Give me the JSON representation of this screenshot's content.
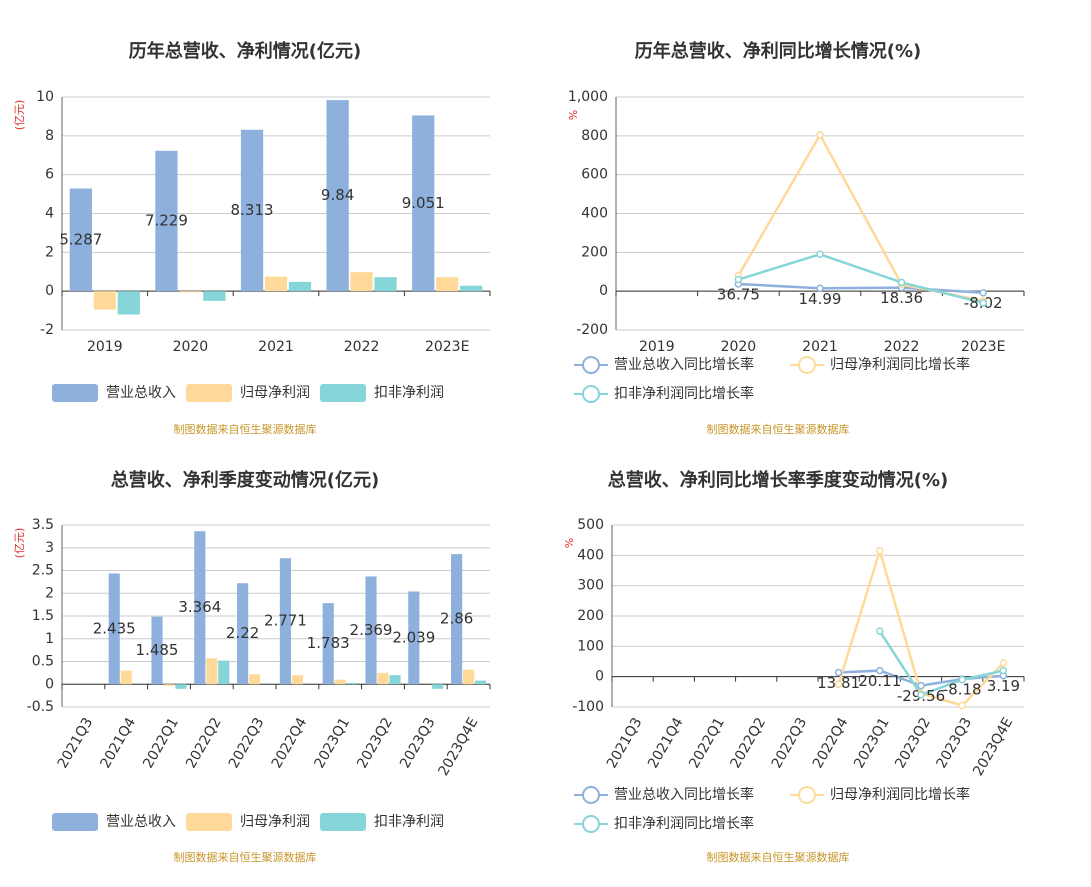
{
  "chart_data": [
    {
      "type": "bar",
      "title": "历年总营收、净利情况(亿元)",
      "y_label": "(亿元)",
      "source": "制图数据来自恒生聚源数据库",
      "categories": [
        "2019",
        "2020",
        "2021",
        "2022",
        "2023E"
      ],
      "series": [
        {
          "name": "营业总收入",
          "color": "#8eb0dd",
          "values": [
            5.287,
            7.229,
            8.313,
            9.84,
            9.051
          ]
        },
        {
          "name": "归母净利润",
          "color": "#ffd99a",
          "values": [
            -0.95,
            -0.05,
            0.75,
            0.98,
            0.72
          ]
        },
        {
          "name": "扣非净利润",
          "color": "#86d5d8",
          "values": [
            -1.2,
            -0.5,
            0.48,
            0.72,
            0.28
          ]
        }
      ],
      "ylim": [
        -2,
        10
      ],
      "yticks": [
        -2,
        0,
        2,
        4,
        6,
        8,
        10
      ],
      "grid": true
    },
    {
      "type": "line",
      "title": "历年总营收、净利同比增长情况(%)",
      "y_label": "%",
      "source": "制图数据来自恒生聚源数据库",
      "categories": [
        "2019",
        "2020",
        "2021",
        "2022",
        "2023E"
      ],
      "series": [
        {
          "name": "营业总收入同比增长率",
          "color": "#8eb0dd",
          "values": [
            null,
            36.75,
            14.99,
            18.36,
            -8.02
          ]
        },
        {
          "name": "归母净利润同比增长率",
          "color": "#ffd99a",
          "values": [
            null,
            80,
            805,
            35,
            -50
          ]
        },
        {
          "name": "扣非净利润同比增长率",
          "color": "#86d5d8",
          "values": [
            null,
            60,
            190,
            45,
            -60
          ]
        }
      ],
      "ylim": [
        -200,
        1000
      ],
      "yticks": [
        -200,
        0,
        200,
        400,
        600,
        800,
        {
          "value": 1000,
          "label": "1,000"
        }
      ],
      "grid": true
    },
    {
      "type": "bar",
      "title": "总营收、净利季度变动情况(亿元)",
      "y_label": "(亿元)",
      "source": "制图数据来自恒生聚源数据库",
      "categories": [
        "2021Q3",
        "2021Q4",
        "2022Q1",
        "2022Q2",
        "2022Q3",
        "2022Q4",
        "2023Q1",
        "2023Q2",
        "2023Q3",
        "2023Q4E"
      ],
      "series": [
        {
          "name": "营业总收入",
          "color": "#8eb0dd",
          "values": [
            null,
            2.435,
            1.485,
            3.364,
            2.22,
            2.771,
            1.783,
            2.369,
            2.039,
            2.86
          ]
        },
        {
          "name": "归母净利润",
          "color": "#ffd99a",
          "values": [
            null,
            0.3,
            -0.03,
            0.57,
            0.22,
            0.2,
            0.1,
            0.25,
            0,
            0.32
          ]
        },
        {
          "name": "扣非净利润",
          "color": "#86d5d8",
          "values": [
            null,
            0,
            -0.1,
            0.52,
            0,
            0,
            0.03,
            0.2,
            -0.1,
            0.08
          ]
        }
      ],
      "ylim": [
        -0.5,
        3.5
      ],
      "yticks": [
        -0.5,
        0,
        0.5,
        1,
        1.5,
        2,
        2.5,
        3,
        3.5
      ],
      "grid": true
    },
    {
      "type": "line",
      "title": "总营收、净利同比增长率季度变动情况(%)",
      "y_label": "%",
      "source": "制图数据来自恒生聚源数据库",
      "categories": [
        "2021Q3",
        "2021Q4",
        "2022Q1",
        "2022Q2",
        "2022Q3",
        "2022Q4",
        "2023Q1",
        "2023Q2",
        "2023Q3",
        "2023Q4E"
      ],
      "series": [
        {
          "name": "营业总收入同比增长率",
          "color": "#8eb0dd",
          "values": [
            null,
            null,
            null,
            null,
            null,
            13.81,
            20.11,
            -29.56,
            -8.18,
            3.19
          ]
        },
        {
          "name": "归母净利润同比增长率",
          "color": "#ffd99a",
          "values": [
            null,
            null,
            null,
            null,
            null,
            -25,
            415,
            -55,
            -95,
            45
          ]
        },
        {
          "name": "扣非净利润同比增长率",
          "color": "#86d5d8",
          "values": [
            null,
            null,
            null,
            null,
            null,
            null,
            150,
            -60,
            -10,
            20
          ]
        }
      ],
      "ylim": [
        -100,
        500
      ],
      "yticks": [
        -100,
        0,
        100,
        200,
        300,
        400,
        500
      ],
      "grid": true
    }
  ]
}
